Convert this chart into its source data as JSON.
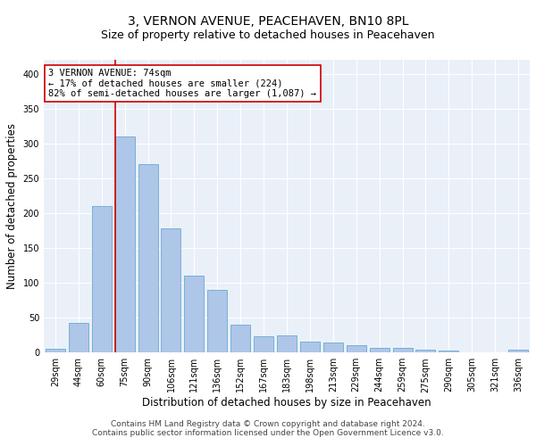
{
  "title": "3, VERNON AVENUE, PEACEHAVEN, BN10 8PL",
  "subtitle": "Size of property relative to detached houses in Peacehaven",
  "xlabel": "Distribution of detached houses by size in Peacehaven",
  "ylabel": "Number of detached properties",
  "categories": [
    "29sqm",
    "44sqm",
    "60sqm",
    "75sqm",
    "90sqm",
    "106sqm",
    "121sqm",
    "136sqm",
    "152sqm",
    "167sqm",
    "183sqm",
    "198sqm",
    "213sqm",
    "229sqm",
    "244sqm",
    "259sqm",
    "275sqm",
    "290sqm",
    "305sqm",
    "321sqm",
    "336sqm"
  ],
  "values": [
    5,
    43,
    210,
    310,
    270,
    178,
    110,
    90,
    40,
    23,
    25,
    15,
    14,
    11,
    6,
    6,
    4,
    3,
    0,
    0,
    4
  ],
  "bar_color": "#aec6e8",
  "bar_edge_color": "#6aaad4",
  "vline_index": 3,
  "vline_color": "#cc0000",
  "annotation_text": "3 VERNON AVENUE: 74sqm\n← 17% of detached houses are smaller (224)\n82% of semi-detached houses are larger (1,087) →",
  "ylim": [
    0,
    420
  ],
  "yticks": [
    0,
    50,
    100,
    150,
    200,
    250,
    300,
    350,
    400
  ],
  "bg_color": "#eaf0f8",
  "grid_color": "#ffffff",
  "footer_line1": "Contains HM Land Registry data © Crown copyright and database right 2024.",
  "footer_line2": "Contains public sector information licensed under the Open Government Licence v3.0.",
  "title_fontsize": 10,
  "subtitle_fontsize": 9,
  "axis_label_fontsize": 8.5,
  "tick_fontsize": 7,
  "annotation_fontsize": 7.5,
  "footer_fontsize": 6.5
}
